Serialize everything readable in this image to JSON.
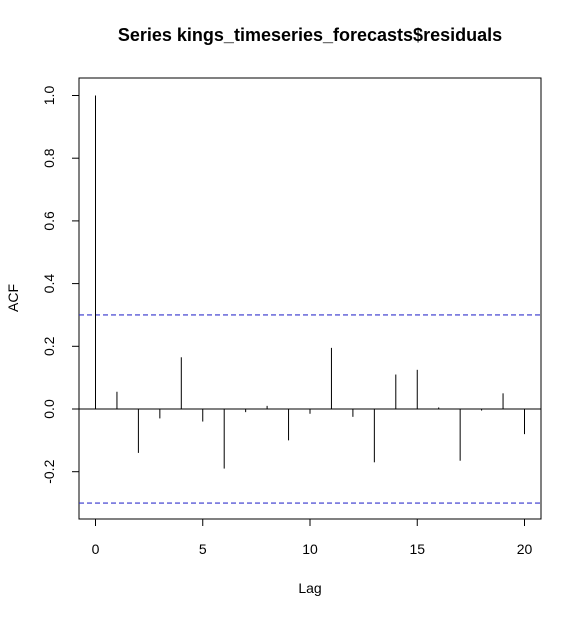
{
  "chart_data": {
    "type": "bar",
    "subtype": "acf",
    "title": "Series  kings_timeseries_forecasts$residuals",
    "xlabel": "Lag",
    "ylabel": "ACF",
    "xlim": [
      0,
      20
    ],
    "ylim": [
      -0.3,
      1.0
    ],
    "x_ticks": [
      0,
      5,
      10,
      15,
      20
    ],
    "y_ticks": [
      -0.2,
      0.0,
      0.2,
      0.4,
      0.6,
      0.8,
      1.0
    ],
    "x_tick_labels": [
      "0",
      "5",
      "10",
      "15",
      "20"
    ],
    "y_tick_labels": [
      "-0.2",
      "0.0",
      "0.2",
      "0.4",
      "0.6",
      "0.8",
      "1.0"
    ],
    "lags": [
      0,
      1,
      2,
      3,
      4,
      5,
      6,
      7,
      8,
      9,
      10,
      11,
      12,
      13,
      14,
      15,
      16,
      17,
      18,
      19,
      20
    ],
    "values": [
      1.0,
      0.055,
      -0.14,
      -0.03,
      0.165,
      -0.04,
      -0.19,
      -0.01,
      0.01,
      -0.1,
      -0.015,
      0.195,
      -0.025,
      -0.17,
      0.11,
      0.125,
      0.005,
      -0.165,
      -0.005,
      0.05,
      -0.08
    ],
    "confidence_bounds": [
      0.3,
      -0.3
    ],
    "colors": {
      "bars": "#000000",
      "bounds": "#3333cc",
      "frame": "#000000"
    }
  }
}
